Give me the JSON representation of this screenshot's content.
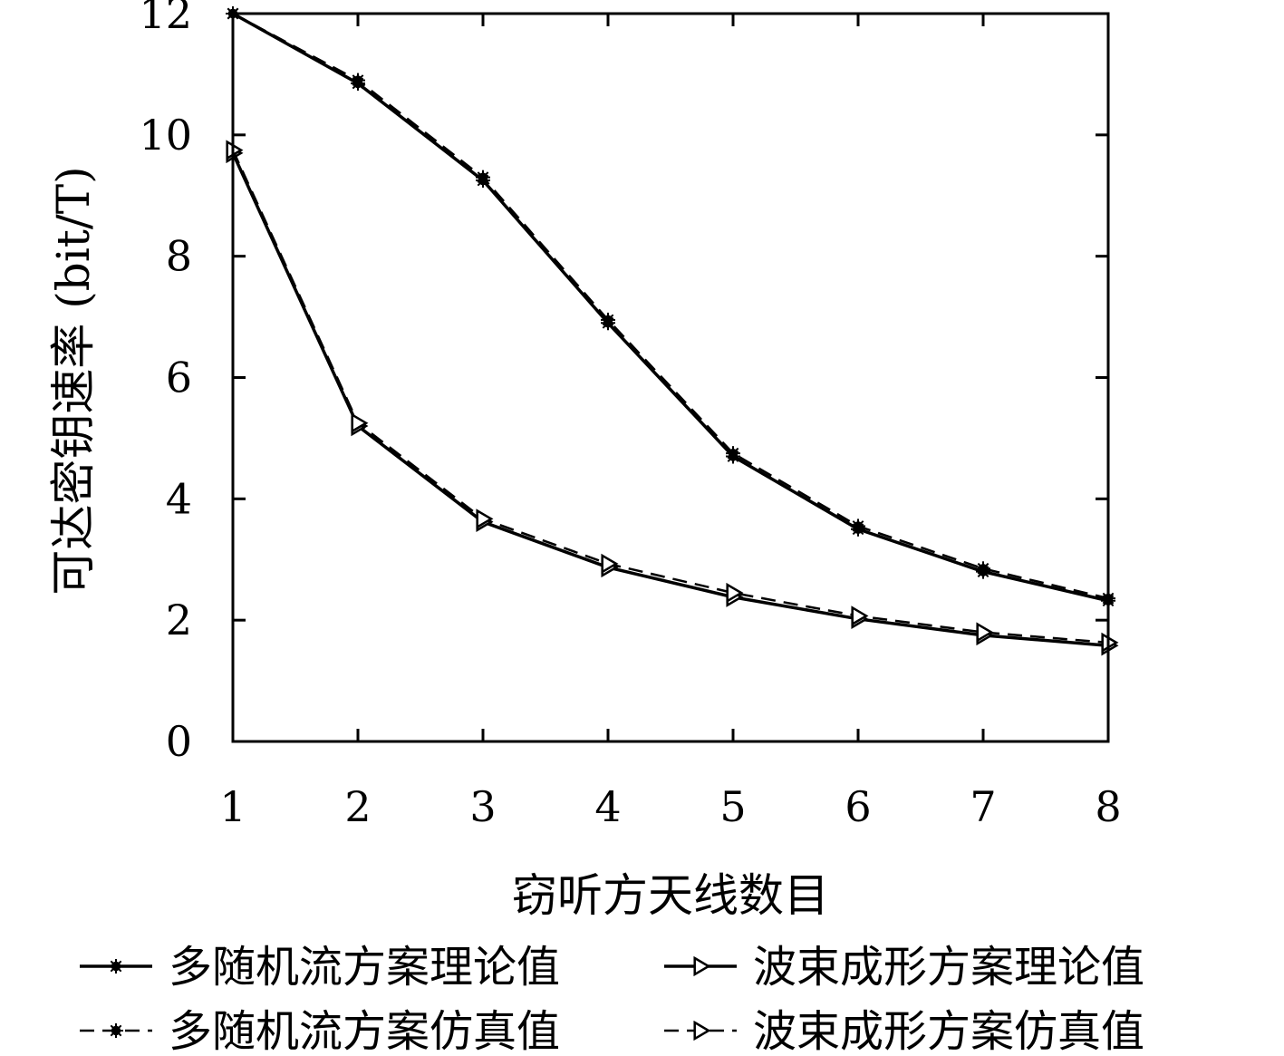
{
  "chart_data": {
    "type": "line",
    "title": "",
    "xlabel": "窃听方天线数目",
    "ylabel": "可达密钥速率 (bit/T)",
    "x": [
      1,
      2,
      3,
      4,
      5,
      6,
      7,
      8
    ],
    "xlim": [
      1,
      8
    ],
    "ylim": [
      0,
      12
    ],
    "xticks": [
      "1",
      "2",
      "3",
      "4",
      "5",
      "6",
      "7",
      "8"
    ],
    "yticks": [
      "0",
      "2",
      "4",
      "6",
      "8",
      "10",
      "12"
    ],
    "grid": false,
    "legend_position": "bottom",
    "series": [
      {
        "name": "多随机流方案理论值",
        "values": [
          12.0,
          10.85,
          9.25,
          6.9,
          4.7,
          3.5,
          2.8,
          2.32
        ],
        "line": "solid",
        "marker": "star"
      },
      {
        "name": "波束成形方案理论值",
        "values": [
          9.7,
          5.2,
          3.62,
          2.87,
          2.38,
          2.02,
          1.75,
          1.58
        ],
        "line": "solid",
        "marker": "triangle-right"
      },
      {
        "name": "多随机流方案仿真值",
        "values": [
          12.0,
          10.9,
          9.3,
          6.95,
          4.75,
          3.55,
          2.85,
          2.36
        ],
        "line": "dashed",
        "marker": "star"
      },
      {
        "name": "波束成形方案仿真值",
        "values": [
          9.75,
          5.25,
          3.67,
          2.93,
          2.45,
          2.07,
          1.8,
          1.63
        ],
        "line": "dashed",
        "marker": "triangle-right"
      }
    ]
  }
}
